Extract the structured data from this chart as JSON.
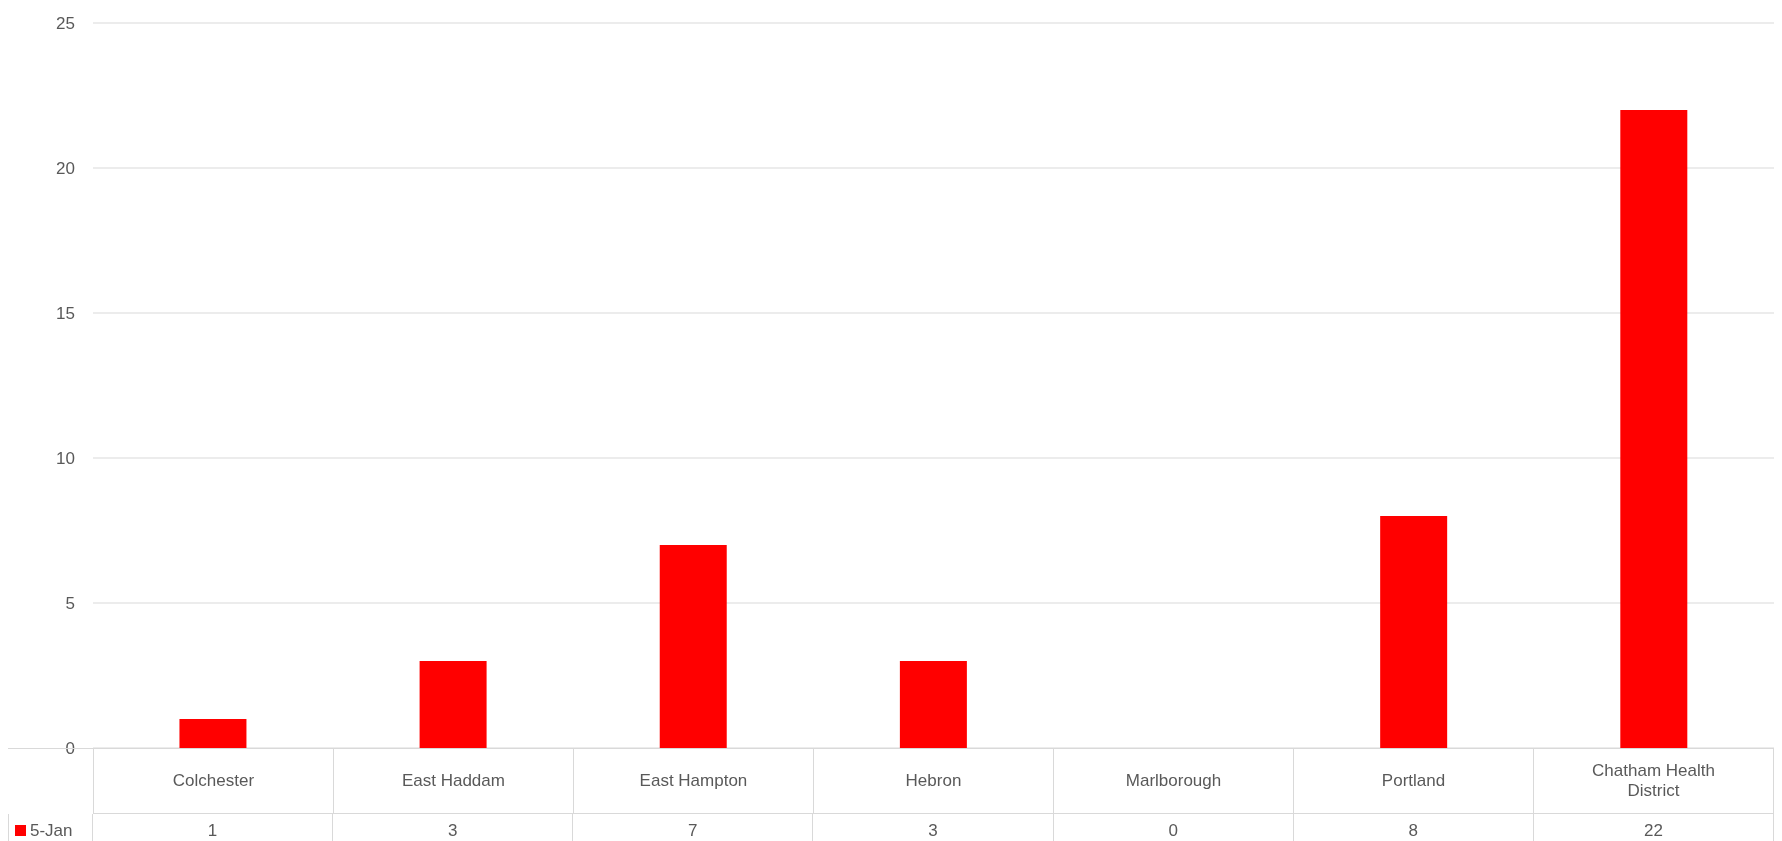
{
  "chart_data": {
    "type": "bar",
    "categories": [
      "Colchester",
      "East Haddam",
      "East Hampton",
      "Hebron",
      "Marlborough",
      "Portland",
      "Chatham Health District"
    ],
    "series": [
      {
        "name": "5-Jan",
        "color": "#ff0000",
        "values": [
          1,
          3,
          7,
          3,
          0,
          8,
          22
        ]
      }
    ],
    "ylim": [
      0,
      25
    ],
    "yticks": [
      0,
      5,
      10,
      15,
      20,
      25
    ],
    "grid": "y",
    "legend": "bottom",
    "data_labels": true
  }
}
